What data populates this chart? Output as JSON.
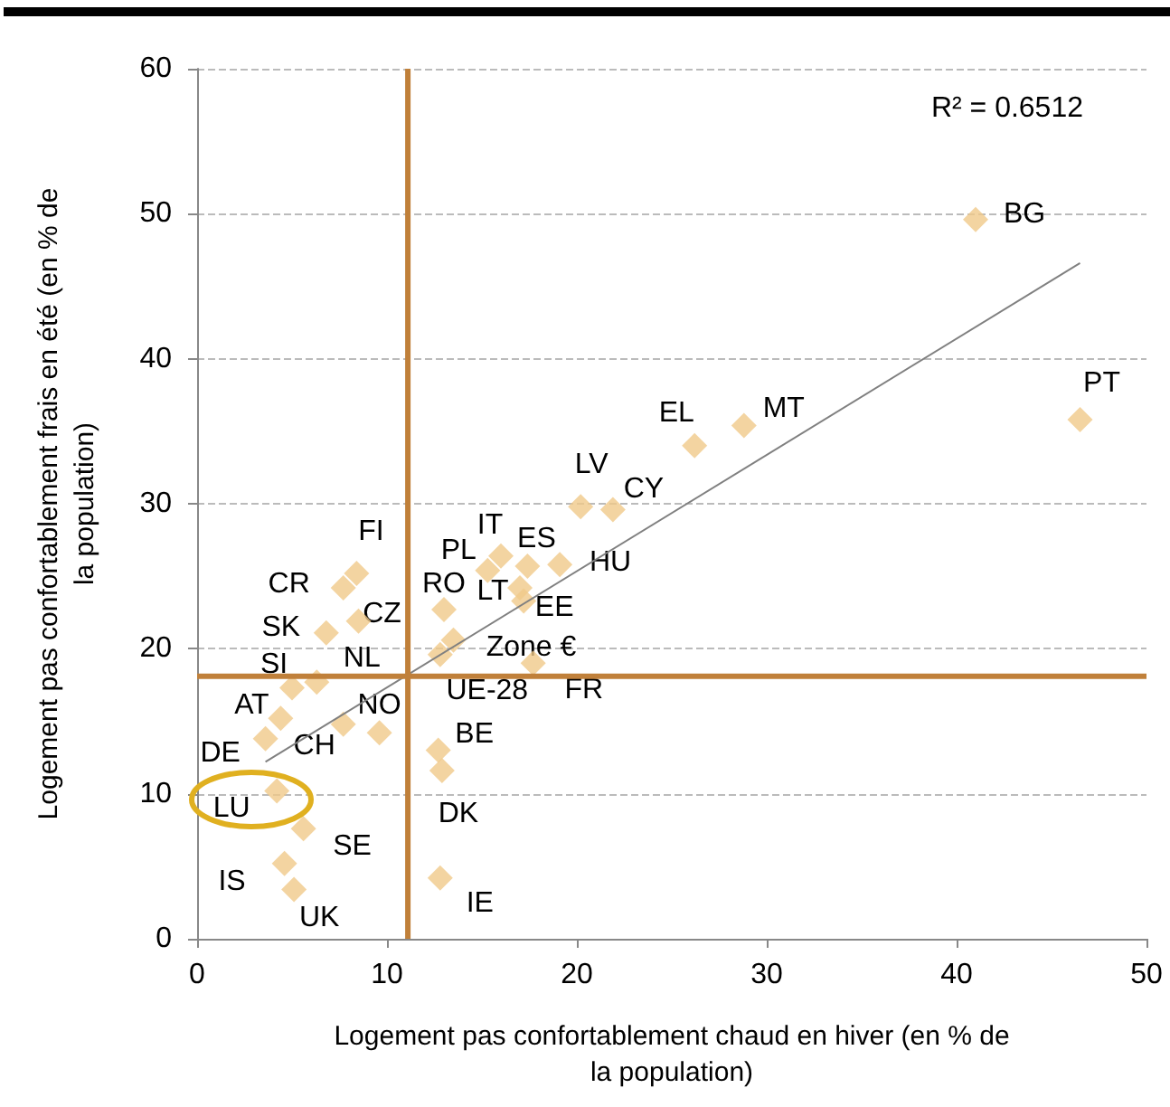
{
  "chart_data": {
    "type": "scatter",
    "xlabel": "Logement pas confortablement chaud en hiver (en % de la population)",
    "ylabel": "Logement pas confortablement frais en été (en % de la population)",
    "xlim": [
      0,
      50
    ],
    "xticks": [
      0,
      10,
      20,
      30,
      40,
      50
    ],
    "ylim": [
      0,
      60
    ],
    "yticks": [
      0,
      10,
      20,
      30,
      40,
      50,
      60
    ],
    "grid": "y",
    "marker": "diamond",
    "series": [
      {
        "color": "#f0c98a",
        "x": [
          41.0,
          46.5,
          28.8,
          26.2,
          20.2,
          21.9,
          16.0,
          15.3,
          17.4,
          19.1,
          17.0,
          17.2,
          13.0,
          13.5,
          17.7,
          12.8,
          8.4,
          7.7,
          8.5,
          6.8,
          5.0,
          6.3,
          4.4,
          3.6,
          7.7,
          9.6,
          12.7,
          12.9,
          4.2,
          5.6,
          4.6,
          5.1,
          12.8
        ],
        "values": [
          49.6,
          35.8,
          35.4,
          34.0,
          29.8,
          29.6,
          26.4,
          25.4,
          25.7,
          25.8,
          24.2,
          23.3,
          22.7,
          20.6,
          19.0,
          19.6,
          25.2,
          24.2,
          21.9,
          21.1,
          17.3,
          17.7,
          15.2,
          13.8,
          14.8,
          14.2,
          13.0,
          11.6,
          10.2,
          7.6,
          5.2,
          3.4,
          4.2
        ]
      },
      {
        "type": "line",
        "marker": "none",
        "color": "#808080",
        "x": [
          3.6,
          46.5
        ],
        "values": [
          12.2,
          46.6
        ]
      }
    ],
    "ref_lines": [
      {
        "axis": "x",
        "value": 11.1,
        "color": "#c0803a"
      },
      {
        "axis": "y",
        "value": 18.1,
        "color": "#c0803a"
      }
    ],
    "annotations": [
      {
        "text": "BG",
        "x": 41.0,
        "y": 49.6
      },
      {
        "text": "PT",
        "x": 46.5,
        "y": 35.8
      },
      {
        "text": "MT",
        "x": 28.8,
        "y": 35.4
      },
      {
        "text": "EL",
        "x": 26.2,
        "y": 34.0
      },
      {
        "text": "LV",
        "x": 20.2,
        "y": 29.8
      },
      {
        "text": "CY",
        "x": 21.9,
        "y": 29.6
      },
      {
        "text": "IT",
        "x": 16.0,
        "y": 26.4
      },
      {
        "text": "PL",
        "x": 15.3,
        "y": 25.4
      },
      {
        "text": "ES",
        "x": 17.4,
        "y": 25.7
      },
      {
        "text": "HU",
        "x": 19.1,
        "y": 25.8
      },
      {
        "text": "LT",
        "x": 17.0,
        "y": 24.2
      },
      {
        "text": "EE",
        "x": 17.2,
        "y": 23.3
      },
      {
        "text": "RO",
        "x": 13.0,
        "y": 22.7
      },
      {
        "text": "Zone €",
        "x": 13.5,
        "y": 20.6
      },
      {
        "text": "FR",
        "x": 17.7,
        "y": 19.0
      },
      {
        "text": "UE-28",
        "x": 12.8,
        "y": 19.6
      },
      {
        "text": "FI",
        "x": 8.4,
        "y": 25.2
      },
      {
        "text": "CR",
        "x": 7.7,
        "y": 24.2
      },
      {
        "text": "CZ",
        "x": 8.5,
        "y": 21.9
      },
      {
        "text": "SK",
        "x": 6.8,
        "y": 21.1
      },
      {
        "text": "SI",
        "x": 5.0,
        "y": 17.3
      },
      {
        "text": "NL",
        "x": 6.3,
        "y": 17.7
      },
      {
        "text": "AT",
        "x": 4.4,
        "y": 15.2
      },
      {
        "text": "DE",
        "x": 3.6,
        "y": 13.8
      },
      {
        "text": "CH",
        "x": 7.7,
        "y": 14.8
      },
      {
        "text": "NO",
        "x": 9.6,
        "y": 14.2
      },
      {
        "text": "BE",
        "x": 12.7,
        "y": 13.0
      },
      {
        "text": "DK",
        "x": 12.9,
        "y": 11.6
      },
      {
        "text": "LU",
        "x": 4.2,
        "y": 10.2
      },
      {
        "text": "SE",
        "x": 5.6,
        "y": 7.6
      },
      {
        "text": "IS",
        "x": 4.6,
        "y": 5.2
      },
      {
        "text": "UK",
        "x": 5.1,
        "y": 3.4
      },
      {
        "text": "IE",
        "x": 12.8,
        "y": 4.2
      },
      "R² = 0.6512"
    ]
  }
}
